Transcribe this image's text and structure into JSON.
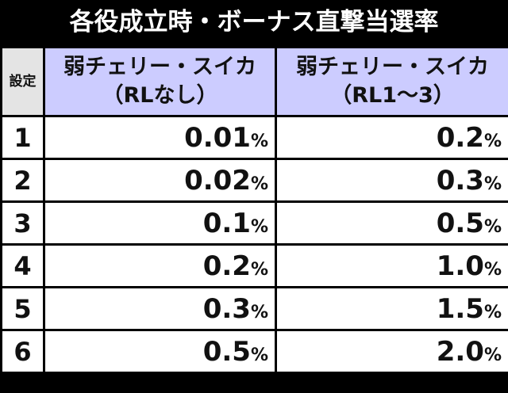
{
  "title": "各役成立時・ボーナス直撃当選率",
  "table": {
    "header": {
      "setting": "設定",
      "columns": [
        [
          "弱チェリー・スイカ",
          "（RLなし）"
        ],
        [
          "弱チェリー・スイカ",
          "（RL1～3）"
        ]
      ]
    },
    "rows": [
      {
        "setting": "1",
        "cells": [
          {
            "value": "0.01",
            "unit": "%"
          },
          {
            "value": "0.2",
            "unit": "%"
          }
        ]
      },
      {
        "setting": "2",
        "cells": [
          {
            "value": "0.02",
            "unit": "%"
          },
          {
            "value": "0.3",
            "unit": "%"
          }
        ]
      },
      {
        "setting": "3",
        "cells": [
          {
            "value": "0.1",
            "unit": "%"
          },
          {
            "value": "0.5",
            "unit": "%"
          }
        ]
      },
      {
        "setting": "4",
        "cells": [
          {
            "value": "0.2",
            "unit": "%"
          },
          {
            "value": "1.0",
            "unit": "%"
          }
        ]
      },
      {
        "setting": "5",
        "cells": [
          {
            "value": "0.3",
            "unit": "%"
          },
          {
            "value": "1.5",
            "unit": "%"
          }
        ]
      },
      {
        "setting": "6",
        "cells": [
          {
            "value": "0.5",
            "unit": "%"
          },
          {
            "value": "2.0",
            "unit": "%"
          }
        ]
      }
    ]
  }
}
